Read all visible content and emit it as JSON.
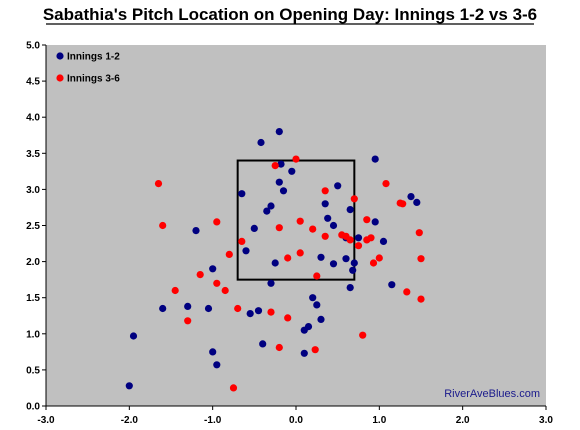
{
  "chart_data": {
    "type": "scatter",
    "title": "Sabathia's Pitch Location on Opening Day: Innings 1-2 vs 3-6",
    "xlabel": "",
    "ylabel": "",
    "xlim": [
      -3.0,
      3.0
    ],
    "ylim": [
      0.0,
      5.0
    ],
    "x_ticks": [
      "-3.0",
      "-2.0",
      "-1.0",
      "0.0",
      "1.0",
      "2.0",
      "3.0"
    ],
    "y_ticks": [
      "0.0",
      "0.5",
      "1.0",
      "1.5",
      "2.0",
      "2.5",
      "3.0",
      "3.5",
      "4.0",
      "4.5",
      "5.0"
    ],
    "grid": false,
    "legend_position": "top-left",
    "plot_background": "#c0c0c0",
    "strike_zone": {
      "x": [
        -0.7,
        0.7
      ],
      "y": [
        1.75,
        3.4
      ]
    },
    "watermark": "RiverAveBlues.com",
    "watermark_color": "#1a1a8c",
    "series": [
      {
        "name": "Innings 1-2",
        "color": "#000080",
        "points": [
          [
            -0.2,
            3.8
          ],
          [
            -0.42,
            3.65
          ],
          [
            0.95,
            3.42
          ],
          [
            -0.18,
            3.35
          ],
          [
            -0.05,
            3.25
          ],
          [
            -0.2,
            3.1
          ],
          [
            0.5,
            3.05
          ],
          [
            -0.15,
            2.98
          ],
          [
            -0.65,
            2.94
          ],
          [
            0.35,
            2.8
          ],
          [
            -0.3,
            2.77
          ],
          [
            -0.35,
            2.7
          ],
          [
            1.38,
            2.9
          ],
          [
            1.45,
            2.82
          ],
          [
            0.65,
            2.72
          ],
          [
            0.95,
            2.55
          ],
          [
            0.38,
            2.6
          ],
          [
            0.45,
            2.5
          ],
          [
            -1.2,
            2.43
          ],
          [
            -0.5,
            2.46
          ],
          [
            0.6,
            2.33
          ],
          [
            0.75,
            2.33
          ],
          [
            1.05,
            2.28
          ],
          [
            -0.6,
            2.15
          ],
          [
            0.3,
            2.06
          ],
          [
            0.6,
            2.04
          ],
          [
            -0.25,
            1.98
          ],
          [
            0.45,
            1.97
          ],
          [
            0.7,
            1.98
          ],
          [
            0.68,
            1.88
          ],
          [
            -1.0,
            1.9
          ],
          [
            -0.3,
            1.7
          ],
          [
            1.15,
            1.68
          ],
          [
            0.65,
            1.64
          ],
          [
            0.2,
            1.5
          ],
          [
            0.25,
            1.4
          ],
          [
            -1.3,
            1.38
          ],
          [
            -1.05,
            1.35
          ],
          [
            -0.55,
            1.28
          ],
          [
            -0.45,
            1.32
          ],
          [
            0.3,
            1.2
          ],
          [
            0.15,
            1.1
          ],
          [
            0.1,
            1.05
          ],
          [
            -1.6,
            1.35
          ],
          [
            -1.95,
            0.97
          ],
          [
            -0.4,
            0.86
          ],
          [
            -1.0,
            0.75
          ],
          [
            -0.95,
            0.57
          ],
          [
            0.1,
            0.73
          ],
          [
            -2.0,
            0.28
          ]
        ]
      },
      {
        "name": "Innings 3-6",
        "color": "#ff0000",
        "points": [
          [
            0.0,
            3.42
          ],
          [
            -0.25,
            3.33
          ],
          [
            -1.65,
            3.08
          ],
          [
            1.08,
            3.08
          ],
          [
            0.35,
            2.98
          ],
          [
            0.7,
            2.87
          ],
          [
            1.28,
            2.8
          ],
          [
            1.25,
            2.81
          ],
          [
            0.05,
            2.56
          ],
          [
            -0.95,
            2.55
          ],
          [
            -1.6,
            2.5
          ],
          [
            0.85,
            2.58
          ],
          [
            -0.2,
            2.47
          ],
          [
            0.2,
            2.45
          ],
          [
            0.35,
            2.35
          ],
          [
            0.55,
            2.37
          ],
          [
            1.48,
            2.4
          ],
          [
            0.6,
            2.35
          ],
          [
            0.9,
            2.33
          ],
          [
            -0.65,
            2.28
          ],
          [
            0.85,
            2.3
          ],
          [
            0.65,
            2.3
          ],
          [
            0.75,
            2.22
          ],
          [
            0.05,
            2.12
          ],
          [
            -0.8,
            2.1
          ],
          [
            -0.1,
            2.05
          ],
          [
            0.25,
            1.8
          ],
          [
            0.93,
            1.98
          ],
          [
            1.0,
            2.05
          ],
          [
            -1.15,
            1.82
          ],
          [
            -0.95,
            1.7
          ],
          [
            -1.45,
            1.6
          ],
          [
            -0.85,
            1.6
          ],
          [
            1.33,
            1.58
          ],
          [
            -1.3,
            1.18
          ],
          [
            1.5,
            1.48
          ],
          [
            -0.3,
            1.3
          ],
          [
            -0.7,
            1.35
          ],
          [
            -0.1,
            1.22
          ],
          [
            -0.2,
            0.81
          ],
          [
            0.23,
            0.78
          ],
          [
            0.8,
            0.98
          ],
          [
            -0.75,
            0.25
          ],
          [
            1.5,
            2.04
          ]
        ]
      }
    ]
  }
}
